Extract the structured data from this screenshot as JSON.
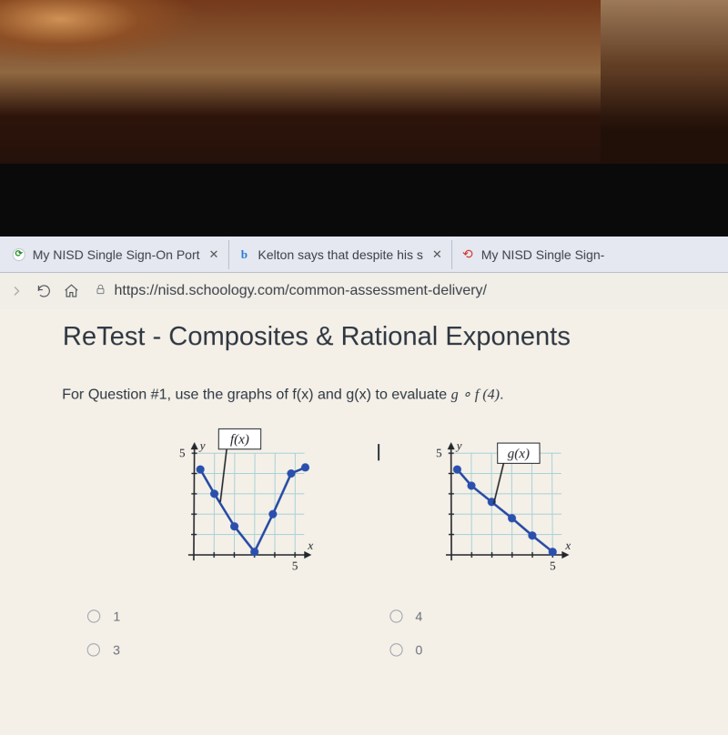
{
  "tabs": [
    {
      "label": "My NISD Single Sign-On Port",
      "favColor": "#1a8a1a",
      "close": true
    },
    {
      "label": "Kelton says that despite his s",
      "favColor": "#2a7bd8",
      "favLetter": "b",
      "close": true
    },
    {
      "label": "My NISD Single Sign-",
      "favColor": "#d0342c",
      "close": false
    }
  ],
  "url": "https://nisd.schoology.com/common-assessment-delivery/",
  "page": {
    "title": "ReTest - Composites & Rational Exponents",
    "question_prefix": "For Question #1, use the graphs of f(x) and g(x) to evaluate ",
    "question_expr": "g ∘ f (4)"
  },
  "graphF": {
    "label": "f(x)",
    "yAxisMark": "5",
    "xAxisMark": "5",
    "yLetter": "y",
    "xLetter": "x",
    "grid": {
      "min": 0,
      "max": 5,
      "step": 1
    },
    "points": [
      {
        "x": 0.3,
        "y": 4.2
      },
      {
        "x": 1,
        "y": 3
      },
      {
        "x": 2,
        "y": 1.4
      },
      {
        "x": 3,
        "y": 0.15
      },
      {
        "x": 3.9,
        "y": 2
      },
      {
        "x": 4.8,
        "y": 4
      },
      {
        "x": 5.5,
        "y": 4.3
      }
    ],
    "lineColor": "#2548a3",
    "dotColor": "#2a4fad"
  },
  "graphG": {
    "label": "g(x)",
    "yAxisMark": "5",
    "xAxisMark": "5",
    "yLetter": "y",
    "xLetter": "x",
    "grid": {
      "min": 0,
      "max": 5,
      "step": 1
    },
    "points": [
      {
        "x": 0.3,
        "y": 4.2
      },
      {
        "x": 1,
        "y": 3.4
      },
      {
        "x": 2,
        "y": 2.6
      },
      {
        "x": 3,
        "y": 1.8
      },
      {
        "x": 4,
        "y": 0.95
      },
      {
        "x": 5,
        "y": 0.15
      }
    ],
    "lineColor": "#2548a3",
    "dotColor": "#2a4fad"
  },
  "answers": [
    {
      "label": "1"
    },
    {
      "label": "4"
    },
    {
      "label": "3"
    },
    {
      "label": "0"
    }
  ]
}
